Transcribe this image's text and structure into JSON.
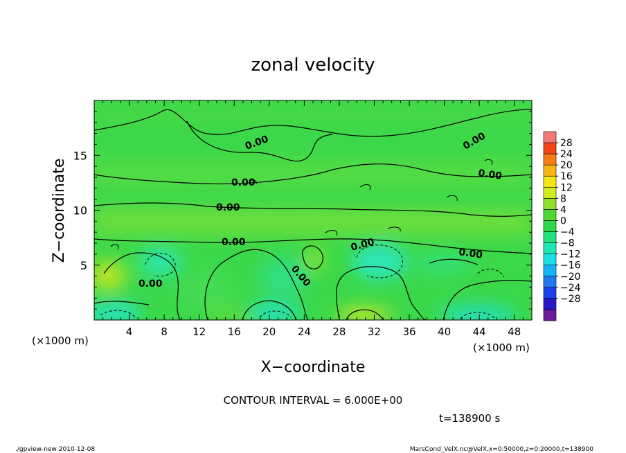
{
  "chart_data": {
    "type": "heatmap",
    "title": "zonal velocity",
    "xlabel": "X−coordinate",
    "ylabel": "Z−coordinate",
    "xunit_left": "(×1000 m)",
    "xunit_right": "(×1000 m)",
    "xlim": [
      0,
      50
    ],
    "ylim": [
      0,
      20
    ],
    "x_ticks": [
      4,
      8,
      12,
      16,
      20,
      24,
      28,
      32,
      36,
      40,
      44,
      48
    ],
    "x_tick_labels": [
      "4",
      "8",
      "12",
      "16",
      "20",
      "24",
      "28",
      "32",
      "36",
      "40",
      "44",
      "48"
    ],
    "y_ticks": [
      5,
      10,
      15
    ],
    "y_tick_labels": [
      "5",
      "10",
      "15"
    ],
    "colorbar": {
      "levels": [
        -32,
        -28,
        -24,
        -20,
        -16,
        -12,
        -8,
        -4,
        0,
        4,
        8,
        12,
        16,
        20,
        24,
        28,
        32
      ],
      "labels": [
        "28",
        "24",
        "20",
        "16",
        "12",
        "8",
        "4",
        "0",
        "−4",
        "−8",
        "−12",
        "−16",
        "−20",
        "−24",
        "−28"
      ],
      "colors": [
        "#6a1e9a",
        "#2a17c9",
        "#1b3fe8",
        "#1f78f0",
        "#12b4f4",
        "#19e0e6",
        "#1ee7b5",
        "#23e27e",
        "#2fd84a",
        "#4fd632",
        "#8fe02a",
        "#d0ee1e",
        "#f3e613",
        "#f6b416",
        "#f77b16",
        "#f4441a",
        "#f07a7a"
      ]
    },
    "contour_interval_label": "CONTOUR INTERVAL = 6.000E+00",
    "contour_labels": [
      "0.00",
      "0.00",
      "0.00",
      "0.00",
      "0.00",
      "0.00",
      "0.00",
      "0.00",
      "0.00",
      "0.00"
    ],
    "time_label": "t=138900 s"
  },
  "footer": {
    "left": "./gpview-new   2010-12-08",
    "right": "MarsCond_VelX.nc@VelX,x=0:50000,z=0:20000,t=138900"
  }
}
